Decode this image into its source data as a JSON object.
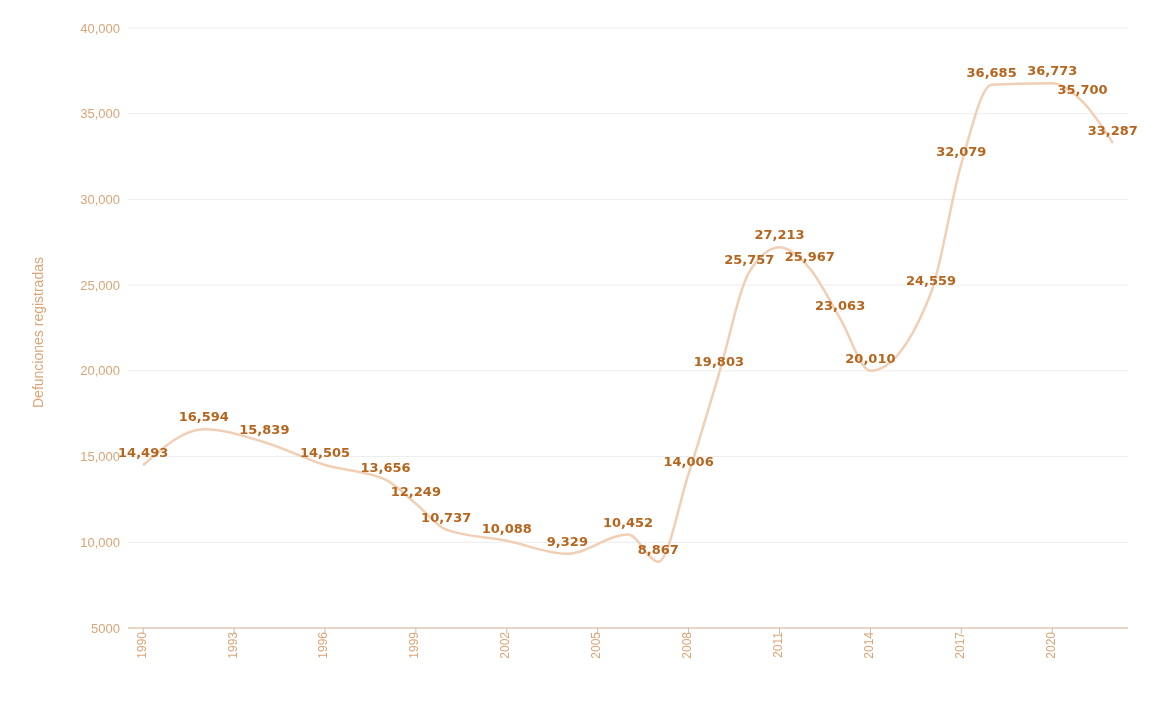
{
  "chart_data": {
    "type": "line",
    "ylabel": "Defunciones registradas",
    "x": [
      1990,
      1992,
      1994,
      1996,
      1998,
      1999,
      2000,
      2002,
      2004,
      2006,
      2007,
      2008,
      2009,
      2010,
      2011,
      2012,
      2013,
      2014,
      2016,
      2017,
      2018,
      2020,
      2021,
      2022
    ],
    "series": [
      {
        "color": "#f0cfb4",
        "values": [
          14493,
          16594,
          15839,
          14505,
          13656,
          12249,
          10737,
          10088,
          9329,
          10452,
          8867,
          14006,
          19803,
          25757,
          27213,
          25967,
          23063,
          20010,
          24559,
          32079,
          36685,
          36773,
          35700,
          33287
        ],
        "value_labels": [
          "14,493",
          "16,594",
          "15,839",
          "14,505",
          "13,656",
          "12,249",
          "10,737",
          "10,088",
          "9,329",
          "10,452",
          "8,867",
          "14,006",
          "19,803",
          "25,757",
          "27,213",
          "25,967",
          "23,063",
          "20,010",
          "24,559",
          "32,079",
          "36,685",
          "36,773",
          "35,700",
          "33,287"
        ]
      }
    ],
    "xlim": [
      1989.5,
      2022.5
    ],
    "xticks": [
      1990,
      1993,
      1996,
      1999,
      2002,
      2005,
      2008,
      2011,
      2014,
      2017,
      2020
    ],
    "ylim": [
      5000,
      40000
    ],
    "yticks": [
      5000,
      {
        "value": 10000,
        "label": "10,000"
      },
      {
        "value": 15000,
        "label": "15,000"
      },
      {
        "value": 20000,
        "label": "20,000"
      },
      {
        "value": 25000,
        "label": "25,000"
      },
      {
        "value": 30000,
        "label": "30,000"
      },
      {
        "value": 35000,
        "label": "35,000"
      },
      {
        "value": 40000,
        "label": "40,000"
      }
    ],
    "grid": "y",
    "marker": "none",
    "line_style": "solid",
    "legend": false
  }
}
